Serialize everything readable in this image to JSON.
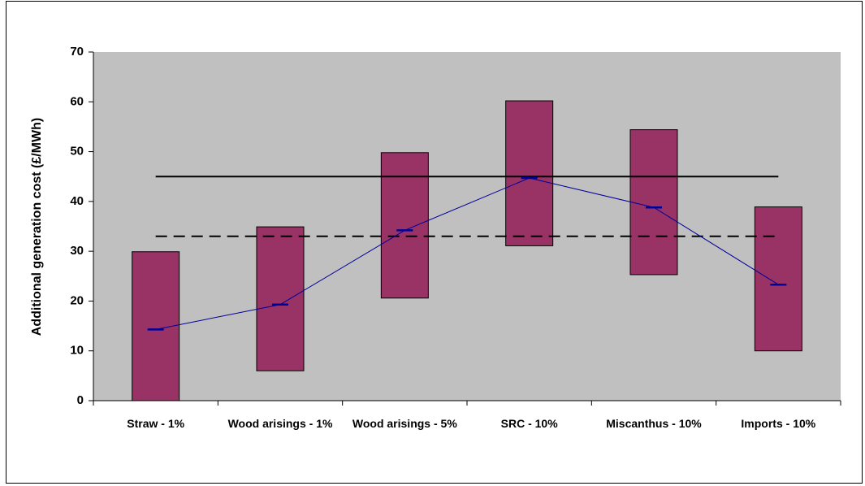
{
  "chart_data": {
    "type": "floating-bar",
    "y_label": "Additional generation cost (£/MWh)",
    "categories": [
      "Straw - 1%",
      "Wood arisings - 1%",
      "Wood arisings - 5%",
      "SRC - 10%",
      "Miscanthus - 10%",
      "Imports - 10%"
    ],
    "low": [
      0,
      6,
      20.6,
      31.1,
      25.3,
      10
    ],
    "high": [
      29.9,
      34.9,
      49.8,
      60.2,
      54.4,
      38.9
    ],
    "mid": [
      14.3,
      19.3,
      34.2,
      44.7,
      38.8,
      23.3
    ],
    "bar_color": "#993366",
    "mid_color": "#000099",
    "reference_lines": [
      {
        "value": 45,
        "style": "solid"
      },
      {
        "value": 33,
        "style": "dashed"
      }
    ],
    "plot_background": "#c0c0c0",
    "ylim": [
      0,
      70
    ],
    "yticks": [
      0,
      10,
      20,
      30,
      40,
      50,
      60,
      70
    ]
  }
}
